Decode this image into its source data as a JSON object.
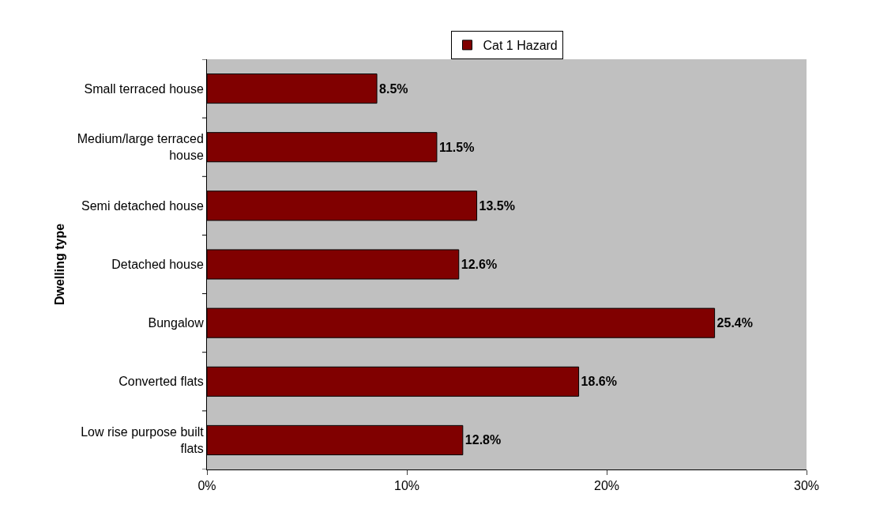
{
  "chart_data": {
    "type": "bar",
    "orientation": "horizontal",
    "ylabel": "Dwelling type",
    "categories": [
      "Small terraced house",
      "Medium/large terraced house",
      "Semi detached house",
      "Detached house",
      "Bungalow",
      "Converted flats",
      "Low rise purpose built flats"
    ],
    "series": [
      {
        "name": "Cat 1 Hazard",
        "color": "#800000",
        "values": [
          8.5,
          11.5,
          13.5,
          12.6,
          25.4,
          18.6,
          12.8
        ],
        "value_labels": [
          "8.5%",
          "11.5%",
          "13.5%",
          "12.6%",
          "25.4%",
          "18.6%",
          "12.8%"
        ]
      }
    ],
    "xlim": [
      0,
      30
    ],
    "xticks": [
      {
        "value": 0,
        "label": "0%"
      },
      {
        "value": 10,
        "label": "10%"
      },
      {
        "value": 20,
        "label": "20%"
      },
      {
        "value": 30,
        "label": "30%"
      }
    ],
    "grid": false,
    "legend": "top"
  }
}
